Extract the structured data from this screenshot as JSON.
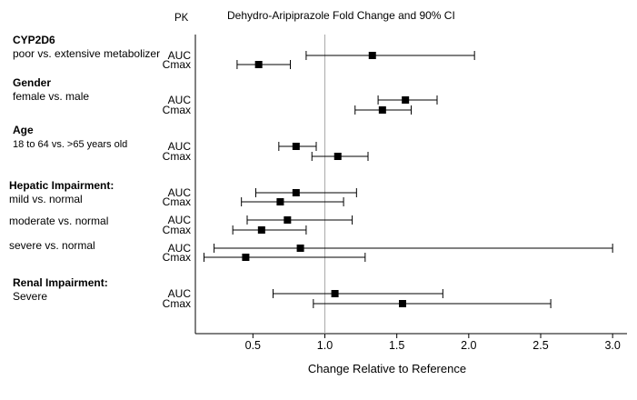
{
  "chart_data": {
    "type": "forest",
    "title": "Dehydro-Aripiprazole Fold Change and 90% CI",
    "pk_header": "PK",
    "xlabel": "Change Relative to Reference",
    "xlim": [
      0.1,
      3.1
    ],
    "xticks": [
      0.5,
      1.0,
      1.5,
      2.0,
      2.5,
      3.0
    ],
    "xtick_labels": [
      "0.5",
      "1.0",
      "1.5",
      "2.0",
      "2.5",
      "3.0"
    ],
    "reference_line": 1.0,
    "groups": [
      {
        "label": "CYP2D6",
        "sublabels": [
          "poor vs. extensive metabolizer"
        ]
      },
      {
        "label": "Gender",
        "sublabels": [
          "female vs. male"
        ]
      },
      {
        "label": "Age",
        "sublabels": [
          "18 to 64 vs. >65 years old"
        ]
      },
      {
        "label": "Hepatic Impairment:",
        "sublabels": [
          "mild vs. normal",
          "moderate vs. normal",
          "severe vs. normal"
        ]
      },
      {
        "label": "Renal Impairment:",
        "sublabels": [
          "Severe"
        ]
      }
    ],
    "rows": [
      {
        "group": "CYP2D6",
        "param": "AUC",
        "estimate": 1.33,
        "ci_low": 0.87,
        "ci_high": 2.04
      },
      {
        "group": "CYP2D6",
        "param": "Cmax",
        "estimate": 0.54,
        "ci_low": 0.39,
        "ci_high": 0.76
      },
      {
        "group": "Gender",
        "param": "AUC",
        "estimate": 1.56,
        "ci_low": 1.37,
        "ci_high": 1.78
      },
      {
        "group": "Gender",
        "param": "Cmax",
        "estimate": 1.4,
        "ci_low": 1.21,
        "ci_high": 1.6
      },
      {
        "group": "Age",
        "param": "AUC",
        "estimate": 0.8,
        "ci_low": 0.68,
        "ci_high": 0.94
      },
      {
        "group": "Age",
        "param": "Cmax",
        "estimate": 1.09,
        "ci_low": 0.91,
        "ci_high": 1.3
      },
      {
        "group": "mild vs. normal",
        "param": "AUC",
        "estimate": 0.8,
        "ci_low": 0.52,
        "ci_high": 1.22
      },
      {
        "group": "mild vs. normal",
        "param": "Cmax",
        "estimate": 0.69,
        "ci_low": 0.42,
        "ci_high": 1.13
      },
      {
        "group": "moderate vs. normal",
        "param": "AUC",
        "estimate": 0.74,
        "ci_low": 0.46,
        "ci_high": 1.19
      },
      {
        "group": "moderate vs. normal",
        "param": "Cmax",
        "estimate": 0.56,
        "ci_low": 0.36,
        "ci_high": 0.87
      },
      {
        "group": "severe vs. normal",
        "param": "AUC",
        "estimate": 0.83,
        "ci_low": 0.23,
        "ci_high": 3.0
      },
      {
        "group": "severe vs. normal",
        "param": "Cmax",
        "estimate": 0.45,
        "ci_low": 0.16,
        "ci_high": 1.28
      },
      {
        "group": "Severe",
        "param": "AUC",
        "estimate": 1.07,
        "ci_low": 0.64,
        "ci_high": 1.82
      },
      {
        "group": "Severe",
        "param": "Cmax",
        "estimate": 1.54,
        "ci_low": 0.92,
        "ci_high": 2.57
      }
    ]
  }
}
